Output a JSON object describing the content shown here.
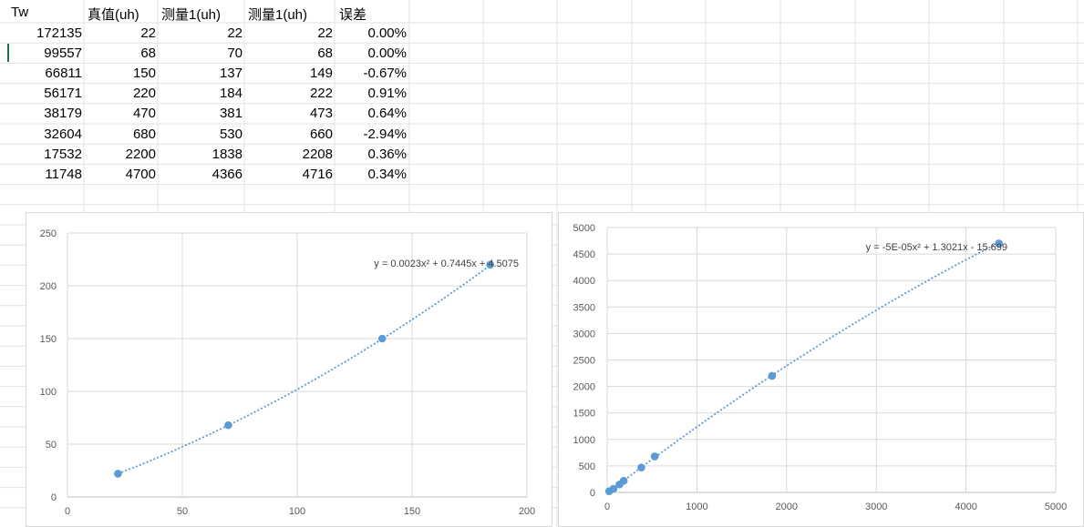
{
  "table": {
    "headers": [
      "Tw",
      "真值(uh)",
      "测量1(uh)",
      "测量1(uh)",
      "误差"
    ],
    "rows": [
      [
        "172135",
        "22",
        "22",
        "22",
        "0.00%"
      ],
      [
        "99557",
        "68",
        "70",
        "68",
        "0.00%"
      ],
      [
        "66811",
        "150",
        "137",
        "149",
        "-0.67%"
      ],
      [
        "56171",
        "220",
        "184",
        "222",
        "0.91%"
      ],
      [
        "38179",
        "470",
        "381",
        "473",
        "0.64%"
      ],
      [
        "32604",
        "680",
        "530",
        "660",
        "-2.94%"
      ],
      [
        "17532",
        "2200",
        "1838",
        "2208",
        "0.36%"
      ],
      [
        "11748",
        "4700",
        "4366",
        "4716",
        "0.34%"
      ]
    ]
  },
  "colors": {
    "marker": "#5b9bd5",
    "trendline": "#5b9bd5",
    "gridline": "#d9d9d9",
    "cell_grid": "#e2e2e2",
    "selection": "#217346"
  },
  "chart_data": [
    {
      "type": "scatter",
      "title": "",
      "xlabel": "",
      "ylabel": "",
      "xlim": [
        0,
        200
      ],
      "ylim": [
        0,
        250
      ],
      "xticks": [
        "0",
        "50",
        "100",
        "150",
        "200"
      ],
      "yticks": [
        "0",
        "50",
        "100",
        "150",
        "200",
        "250"
      ],
      "grid": true,
      "series": [
        {
          "x": [
            22,
            70,
            137,
            184
          ],
          "y": [
            22,
            68,
            150,
            220
          ]
        }
      ],
      "trendline": {
        "kind": "polynomial",
        "coefficients": [
          0.0023,
          0.7445,
          4.5075
        ],
        "x_from": 22,
        "x_to": 184,
        "label": "y = 0.0023x² + 0.7445x + 4.5075"
      }
    },
    {
      "type": "scatter",
      "title": "",
      "xlabel": "",
      "ylabel": "",
      "xlim": [
        0,
        5000
      ],
      "ylim": [
        0,
        5000
      ],
      "xticks": [
        "0",
        "1000",
        "2000",
        "3000",
        "4000",
        "5000"
      ],
      "yticks": [
        "0",
        "500",
        "1000",
        "1500",
        "2000",
        "2500",
        "3000",
        "3500",
        "4000",
        "4500",
        "5000"
      ],
      "grid": true,
      "series": [
        {
          "x": [
            22,
            70,
            137,
            184,
            381,
            530,
            1838,
            4366
          ],
          "y": [
            22,
            68,
            150,
            220,
            470,
            680,
            2200,
            4700
          ]
        }
      ],
      "trendline": {
        "kind": "polynomial",
        "coefficients": [
          -5e-05,
          1.3021,
          -15.699
        ],
        "x_from": 22,
        "x_to": 4366,
        "label": "y = -5E-05x² + 1.3021x - 15.699"
      }
    }
  ]
}
